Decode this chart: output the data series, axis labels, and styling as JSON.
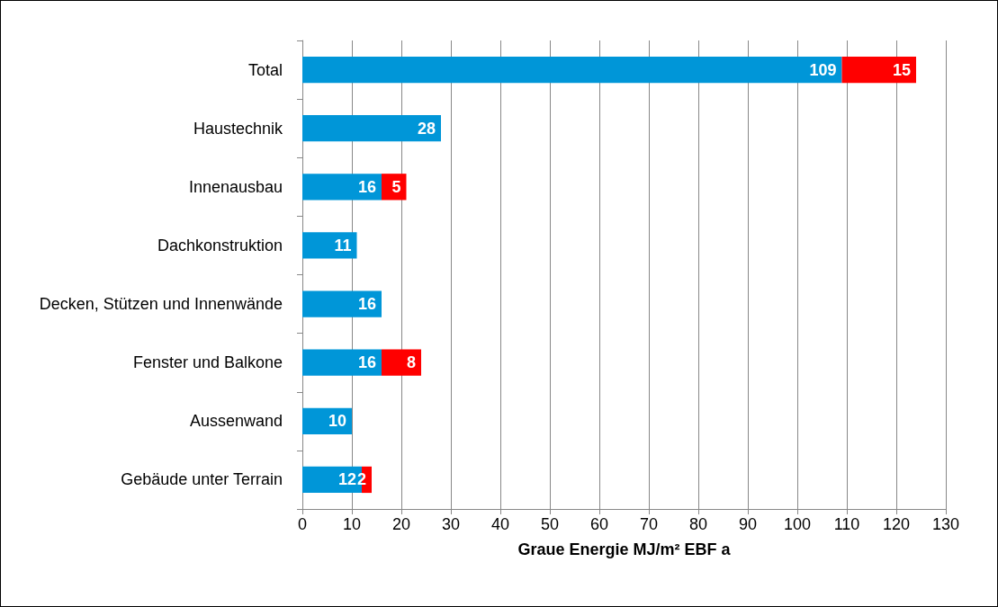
{
  "chart_data": {
    "type": "bar",
    "orientation": "horizontal",
    "stacked": true,
    "xlabel": "Graue Energie MJ/m² EBF a",
    "categories": [
      "Total",
      "Haustechnik",
      "Innenausbau",
      "Dachkonstruktion",
      "Decken, Stützen und Innenwände",
      "Fenster und Balkone",
      "Aussenwand",
      "Gebäude unter Terrain"
    ],
    "series": [
      {
        "color": "#0096d8",
        "values": [
          109,
          28,
          16,
          11,
          16,
          16,
          10,
          12
        ]
      },
      {
        "color": "#ff0000",
        "values": [
          15,
          null,
          5,
          null,
          null,
          8,
          null,
          2
        ]
      }
    ],
    "xlim": [
      0,
      130
    ],
    "xticks": [
      0,
      10,
      20,
      30,
      40,
      50,
      60,
      70,
      80,
      90,
      100,
      110,
      120,
      130
    ],
    "grid": "x",
    "data_labels": true
  }
}
